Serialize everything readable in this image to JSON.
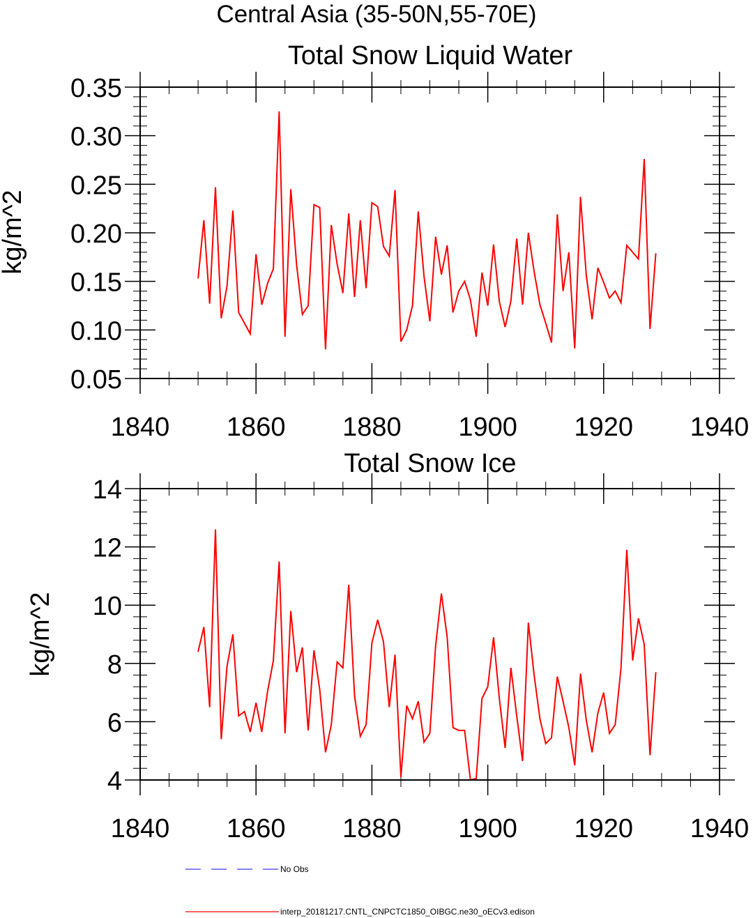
{
  "figure": {
    "title": "Central Asia (35-50N,55-70E)"
  },
  "legend": {
    "entries": [
      {
        "label": "No Obs",
        "color": "#3b3bff",
        "style": "dashed"
      },
      {
        "label": "interp_20181217.CNTL_CNPCTC1850_OIBGC.ne30_oECv3.edison",
        "color": "#ff0000",
        "style": "solid"
      }
    ],
    "placement": "bottom"
  },
  "chart_data": [
    {
      "type": "line",
      "title": "Total Snow Liquid Water",
      "xlabel": "",
      "ylabel": "kg/m^2",
      "xlim": [
        1840,
        1940
      ],
      "ylim": [
        0.05,
        0.35
      ],
      "xticks": [
        1840,
        1860,
        1880,
        1900,
        1920,
        1940
      ],
      "xtick_labels": [
        "1840",
        "1860",
        "1880",
        "1900",
        "1920",
        "1940"
      ],
      "yticks": [
        0.05,
        0.1,
        0.15,
        0.2,
        0.25,
        0.3,
        0.35
      ],
      "ytick_labels": [
        "0.05",
        "0.10",
        "0.15",
        "0.20",
        "0.25",
        "0.30",
        "0.35"
      ],
      "grid": false,
      "x": [
        1850,
        1851,
        1852,
        1853,
        1854,
        1855,
        1856,
        1857,
        1858,
        1859,
        1860,
        1861,
        1862,
        1863,
        1864,
        1865,
        1866,
        1867,
        1868,
        1869,
        1870,
        1871,
        1872,
        1873,
        1874,
        1875,
        1876,
        1877,
        1878,
        1879,
        1880,
        1881,
        1882,
        1883,
        1884,
        1885,
        1886,
        1887,
        1888,
        1889,
        1890,
        1891,
        1892,
        1893,
        1894,
        1895,
        1896,
        1897,
        1898,
        1899,
        1900,
        1901,
        1902,
        1903,
        1904,
        1905,
        1906,
        1907,
        1908,
        1909,
        1910,
        1911,
        1912,
        1913,
        1914,
        1915,
        1916,
        1917,
        1918,
        1919,
        1920,
        1921,
        1922,
        1923,
        1924,
        1925,
        1926,
        1927,
        1928,
        1929
      ],
      "series": [
        {
          "name": "interp_20181217.CNTL_CNPCTC1850_OIBGC.ne30_oECv3.edison",
          "color": "#ff0000",
          "values": [
            0.153,
            0.213,
            0.127,
            0.247,
            0.112,
            0.145,
            0.223,
            0.118,
            0.107,
            0.096,
            0.178,
            0.126,
            0.148,
            0.163,
            0.325,
            0.093,
            0.245,
            0.167,
            0.116,
            0.125,
            0.229,
            0.226,
            0.08,
            0.208,
            0.168,
            0.138,
            0.22,
            0.134,
            0.213,
            0.143,
            0.231,
            0.227,
            0.186,
            0.176,
            0.244,
            0.088,
            0.1,
            0.125,
            0.222,
            0.155,
            0.109,
            0.196,
            0.157,
            0.187,
            0.118,
            0.14,
            0.15,
            0.131,
            0.093,
            0.159,
            0.125,
            0.188,
            0.129,
            0.103,
            0.13,
            0.194,
            0.126,
            0.2,
            0.16,
            0.126,
            0.107,
            0.087,
            0.219,
            0.14,
            0.18,
            0.081,
            0.237,
            0.156,
            0.111,
            0.164,
            0.149,
            0.133,
            0.14,
            0.128,
            0.187,
            0.18,
            0.173,
            0.276,
            0.101,
            0.179
          ]
        }
      ]
    },
    {
      "type": "line",
      "title": "Total Snow Ice",
      "xlabel": "",
      "ylabel": "kg/m^2",
      "xlim": [
        1840,
        1940
      ],
      "ylim": [
        4,
        14
      ],
      "xticks": [
        1840,
        1860,
        1880,
        1900,
        1920,
        1940
      ],
      "xtick_labels": [
        "1840",
        "1860",
        "1880",
        "1900",
        "1920",
        "1940"
      ],
      "yticks": [
        4,
        6,
        8,
        10,
        12,
        14
      ],
      "ytick_labels": [
        "4",
        "6",
        "8",
        "10",
        "12",
        "14"
      ],
      "grid": false,
      "x": [
        1850,
        1851,
        1852,
        1853,
        1854,
        1855,
        1856,
        1857,
        1858,
        1859,
        1860,
        1861,
        1862,
        1863,
        1864,
        1865,
        1866,
        1867,
        1868,
        1869,
        1870,
        1871,
        1872,
        1873,
        1874,
        1875,
        1876,
        1877,
        1878,
        1879,
        1880,
        1881,
        1882,
        1883,
        1884,
        1885,
        1886,
        1887,
        1888,
        1889,
        1890,
        1891,
        1892,
        1893,
        1894,
        1895,
        1896,
        1897,
        1898,
        1899,
        1900,
        1901,
        1902,
        1903,
        1904,
        1905,
        1906,
        1907,
        1908,
        1909,
        1910,
        1911,
        1912,
        1913,
        1914,
        1915,
        1916,
        1917,
        1918,
        1919,
        1920,
        1921,
        1922,
        1923,
        1924,
        1925,
        1926,
        1927,
        1928,
        1929
      ],
      "series": [
        {
          "name": "interp_20181217.CNTL_CNPCTC1850_OIBGC.ne30_oECv3.edison",
          "color": "#ff0000",
          "values": [
            8.4,
            9.25,
            6.5,
            12.6,
            5.4,
            7.9,
            9.0,
            6.2,
            6.35,
            5.65,
            6.65,
            5.65,
            7.05,
            8.1,
            11.5,
            5.6,
            9.8,
            7.7,
            8.55,
            5.7,
            8.45,
            7.1,
            4.95,
            5.9,
            8.05,
            7.85,
            10.7,
            6.9,
            5.5,
            5.9,
            8.7,
            9.5,
            8.75,
            6.5,
            8.3,
            4.1,
            6.55,
            6.1,
            6.7,
            5.3,
            5.6,
            8.6,
            10.4,
            8.9,
            5.8,
            5.7,
            5.7,
            4.0,
            4.05,
            6.8,
            7.2,
            8.9,
            6.8,
            5.1,
            7.85,
            6.2,
            4.65,
            9.4,
            7.6,
            6.1,
            5.25,
            5.45,
            7.55,
            6.7,
            5.8,
            4.5,
            7.65,
            6.05,
            4.95,
            6.3,
            7.0,
            5.6,
            5.9,
            7.85,
            11.9,
            8.1,
            9.55,
            8.65,
            4.85,
            7.7
          ]
        }
      ]
    }
  ]
}
